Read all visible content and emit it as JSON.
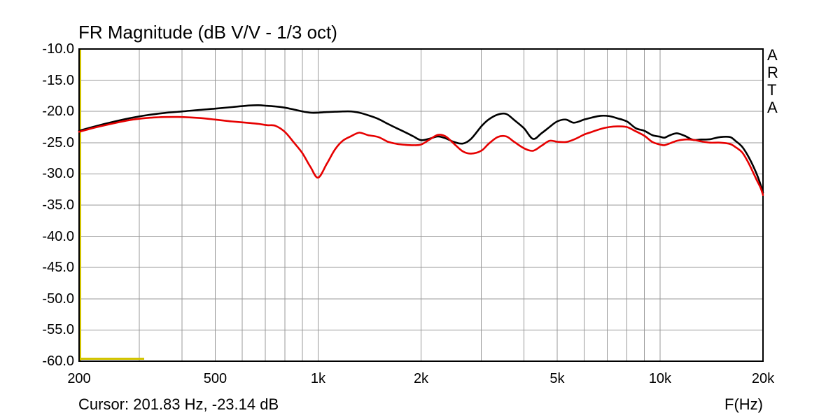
{
  "title": "FR Magnitude (dB V/V - 1/3 oct)",
  "watermark": "ARTA",
  "cursor": {
    "text": "Cursor: 201.83 Hz, -23.14 dB",
    "freq_hz": 201.83,
    "level_db": -23.14
  },
  "colors": {
    "background": "#ffffff",
    "border": "#000000",
    "grid": "#989898",
    "curve_black": "#000000",
    "curve_red": "#e60000",
    "cursor_yellow": "#d2c400"
  },
  "y_axis": {
    "unit": "dB",
    "tick_labels": [
      "-10.0",
      "-15.0",
      "-20.0",
      "-25.0",
      "-30.0",
      "-35.0",
      "-40.0",
      "-45.0",
      "-50.0",
      "-55.0",
      "-60.0"
    ],
    "tick_values": [
      -10,
      -15,
      -20,
      -25,
      -30,
      -35,
      -40,
      -45,
      -50,
      -55,
      -60
    ],
    "gridlines_db": [
      -15,
      -20,
      -25,
      -30,
      -35,
      -40,
      -45,
      -50,
      -55
    ]
  },
  "x_axis": {
    "label": "F(Hz)",
    "ticks": [
      {
        "hz": 200,
        "label": "200"
      },
      {
        "hz": 500,
        "label": "500"
      },
      {
        "hz": 1000,
        "label": "1k"
      },
      {
        "hz": 2000,
        "label": "2k"
      },
      {
        "hz": 5000,
        "label": "5k"
      },
      {
        "hz": 10000,
        "label": "10k"
      },
      {
        "hz": 20000,
        "label": "20k"
      }
    ],
    "gridlines_hz": [
      300,
      400,
      500,
      600,
      700,
      800,
      900,
      1000,
      2000,
      3000,
      4000,
      5000,
      6000,
      7000,
      8000,
      9000,
      10000
    ]
  },
  "chart_data": {
    "type": "line",
    "title": "FR Magnitude (dB V/V - 1/3 oct)",
    "xlabel": "F(Hz)",
    "ylabel": "dB",
    "x_scale": "log",
    "xlim": [
      200,
      20000
    ],
    "ylim": [
      -60,
      -10
    ],
    "grid": true,
    "smoothing": "1/3 oct",
    "x": [
      200,
      224,
      250,
      280,
      315,
      355,
      400,
      450,
      500,
      560,
      630,
      670,
      710,
      750,
      800,
      850,
      900,
      950,
      1000,
      1060,
      1120,
      1180,
      1250,
      1320,
      1400,
      1500,
      1600,
      1700,
      1800,
      1900,
      2000,
      2120,
      2240,
      2360,
      2500,
      2650,
      2800,
      3000,
      3150,
      3350,
      3550,
      3750,
      4000,
      4250,
      4500,
      4750,
      5000,
      5300,
      5600,
      6000,
      6300,
      6700,
      7100,
      7500,
      8000,
      8500,
      9000,
      9500,
      10000,
      10300,
      10700,
      11200,
      11800,
      12500,
      13200,
      14000,
      15000,
      16000,
      16600,
      17400,
      18200,
      19100,
      19700,
      20000
    ],
    "series": [
      {
        "name": "overlay-curve-black",
        "color": "#000000",
        "values": [
          -23.1,
          -22.35,
          -21.7,
          -21.1,
          -20.6,
          -20.25,
          -20.0,
          -19.75,
          -19.55,
          -19.3,
          -19.05,
          -19.0,
          -19.1,
          -19.2,
          -19.4,
          -19.7,
          -20.0,
          -20.2,
          -20.2,
          -20.1,
          -20.05,
          -20.0,
          -20.0,
          -20.2,
          -20.6,
          -21.2,
          -22.0,
          -22.7,
          -23.35,
          -24.0,
          -24.6,
          -24.35,
          -24.0,
          -24.3,
          -24.9,
          -25.15,
          -24.4,
          -22.4,
          -21.3,
          -20.5,
          -20.4,
          -21.4,
          -22.7,
          -24.4,
          -23.5,
          -22.5,
          -21.6,
          -21.3,
          -21.8,
          -21.3,
          -21.0,
          -20.7,
          -20.75,
          -21.1,
          -21.6,
          -22.7,
          -23.1,
          -23.8,
          -24.05,
          -24.2,
          -23.8,
          -23.5,
          -23.9,
          -24.55,
          -24.5,
          -24.45,
          -24.1,
          -24.1,
          -24.7,
          -25.7,
          -27.4,
          -29.8,
          -31.8,
          -33.0
        ]
      },
      {
        "name": "overlay-curve-red",
        "color": "#e60000",
        "values": [
          -23.25,
          -22.55,
          -21.95,
          -21.4,
          -21.05,
          -20.9,
          -20.9,
          -21.05,
          -21.3,
          -21.6,
          -21.85,
          -22.0,
          -22.2,
          -22.3,
          -23.3,
          -25.0,
          -26.7,
          -28.9,
          -30.6,
          -28.4,
          -26.1,
          -24.7,
          -23.95,
          -23.4,
          -23.8,
          -24.1,
          -24.85,
          -25.2,
          -25.35,
          -25.4,
          -25.3,
          -24.5,
          -23.75,
          -24.0,
          -25.2,
          -26.4,
          -26.75,
          -26.3,
          -25.2,
          -24.1,
          -24.0,
          -24.9,
          -25.9,
          -26.3,
          -25.5,
          -24.7,
          -24.85,
          -24.9,
          -24.5,
          -23.7,
          -23.3,
          -22.8,
          -22.5,
          -22.4,
          -22.5,
          -23.2,
          -23.9,
          -24.9,
          -25.3,
          -25.4,
          -25.1,
          -24.7,
          -24.5,
          -24.55,
          -24.8,
          -25.0,
          -25.0,
          -25.2,
          -25.7,
          -26.6,
          -28.4,
          -30.8,
          -32.3,
          -33.4
        ]
      }
    ],
    "markers": [
      {
        "name": "cursor-line",
        "type": "vline",
        "hz": 201.83,
        "color": "#d2c400"
      },
      {
        "name": "floor-marker",
        "type": "segment",
        "points": [
          [
            200,
            -59.6
          ],
          [
            310,
            -59.6
          ]
        ],
        "color": "#d2c400"
      }
    ]
  }
}
